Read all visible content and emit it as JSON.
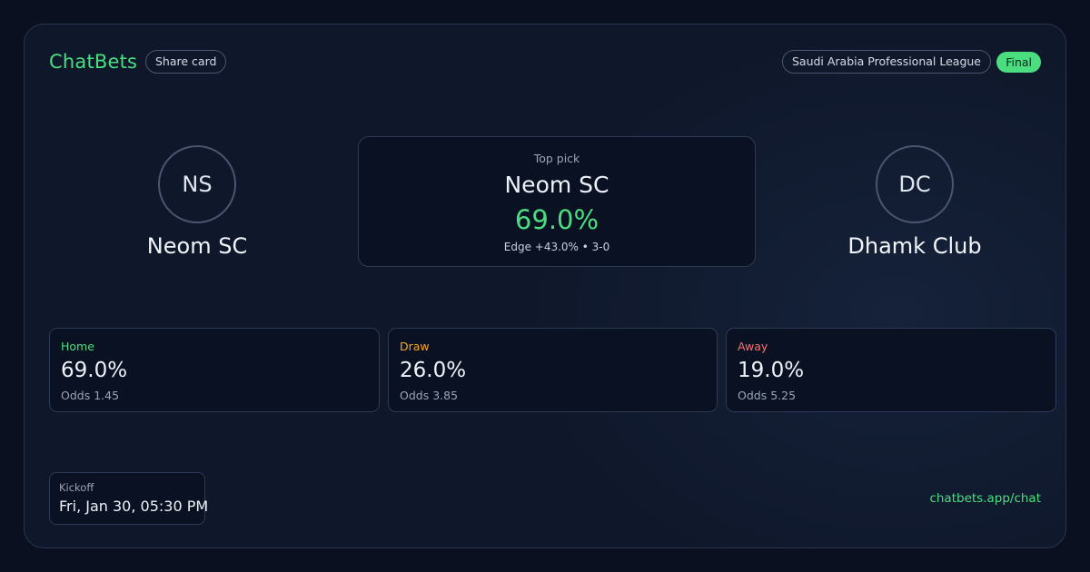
{
  "brand": "ChatBets",
  "share_label": "Share card",
  "league": "Saudi Arabia Professional League",
  "status": "Final",
  "home": {
    "initials": "NS",
    "name": "Neom SC"
  },
  "away": {
    "initials": "DC",
    "name": "Dhamk Club"
  },
  "top_pick": {
    "label": "Top pick",
    "team": "Neom SC",
    "probability": "69.0%",
    "edge_line": "Edge +43.0% • 3-0"
  },
  "outcomes": [
    {
      "label": "Home",
      "probability": "69.0%",
      "odds": "Odds 1.45",
      "color": "#4ade80"
    },
    {
      "label": "Draw",
      "probability": "26.0%",
      "odds": "Odds 3.85",
      "color": "#f5a524"
    },
    {
      "label": "Away",
      "probability": "19.0%",
      "odds": "Odds 5.25",
      "color": "#f87171"
    }
  ],
  "kickoff": {
    "label": "Kickoff",
    "value": "Fri, Jan 30, 05:30 PM"
  },
  "url": "chatbets.app/chat",
  "colors": {
    "accent": "#4ade80",
    "background": "#0f172a"
  }
}
